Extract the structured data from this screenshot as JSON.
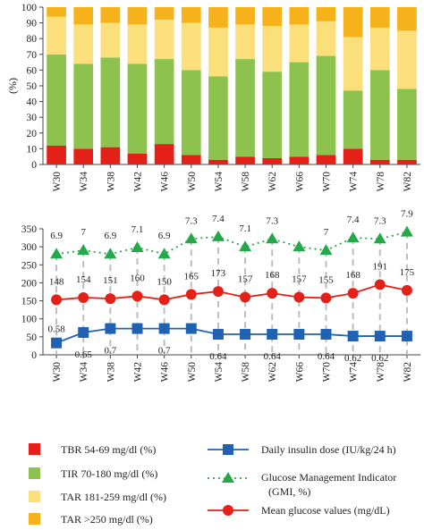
{
  "chart_data": [
    {
      "type": "bar",
      "stacked": true,
      "ylabel": "(%)",
      "ylim": [
        0,
        100
      ],
      "yticks": [
        0,
        10,
        20,
        30,
        40,
        50,
        60,
        70,
        80,
        90,
        100
      ],
      "categories": [
        "W30",
        "W34",
        "W38",
        "W42",
        "W46",
        "W50",
        "W54",
        "W58",
        "W62",
        "W66",
        "W70",
        "W74",
        "W78",
        "W82"
      ],
      "series": [
        {
          "name": "TBR 54-69 mg/dl (%)",
          "color": "#e32119",
          "values": [
            12,
            10,
            11,
            7,
            13,
            6,
            3,
            5,
            4,
            5,
            6,
            10,
            3,
            3
          ]
        },
        {
          "name": "TIR 70-180 mg/dl (%)",
          "color": "#8cc24d",
          "values": [
            58,
            54,
            57,
            57,
            54,
            54,
            53,
            62,
            55,
            60,
            63,
            37,
            57,
            45
          ]
        },
        {
          "name": "TAR 181-259 mg/dl (%)",
          "color": "#fbdf7a",
          "values": [
            24,
            25,
            22,
            25,
            25,
            30,
            31,
            22,
            29,
            24,
            22,
            34,
            27,
            37
          ]
        },
        {
          "name": "TAR >250 mg/dl (%)",
          "color": "#f6b21a",
          "values": [
            6,
            11,
            10,
            11,
            8,
            10,
            13,
            11,
            12,
            11,
            9,
            19,
            13,
            15
          ]
        }
      ]
    },
    {
      "type": "line",
      "ylim": [
        0,
        350
      ],
      "yticks": [
        0,
        50,
        100,
        150,
        200,
        250,
        300,
        350
      ],
      "categories": [
        "W30",
        "W34",
        "W38",
        "W42",
        "W46",
        "W50",
        "W54",
        "W58",
        "W62",
        "W66",
        "W70",
        "W74",
        "W78",
        "W82"
      ],
      "series": [
        {
          "name": "Daily insulin dose (IU/kg/24 h)",
          "color": "#1f62b3",
          "marker": "square",
          "plot_values": [
            33,
            62,
            73,
            73,
            73,
            73,
            57,
            57,
            57,
            57,
            57,
            52,
            52,
            52
          ],
          "labels": [
            "0.58",
            "0.65",
            "0.7",
            "",
            "0.7",
            "",
            "0.64",
            "",
            "0.64",
            "",
            "0.64",
            "0.62",
            "0.62",
            ""
          ]
        },
        {
          "name": "Glucose Management Indicator (GMI, %)",
          "color": "#25a84a",
          "marker": "triangle",
          "dotted": true,
          "plot_values": [
            280,
            290,
            280,
            298,
            280,
            322,
            328,
            300,
            322,
            300,
            290,
            325,
            322,
            341
          ],
          "labels": [
            "6.9",
            "7",
            "6.9",
            "7.1",
            "6.9",
            "7.3",
            "7.4",
            "7.1",
            "7.3",
            "",
            "7",
            "7.4",
            "7.3",
            "7.9"
          ]
        },
        {
          "name": "Mean glucose values (mg/dL)",
          "color": "#e32119",
          "marker": "circle",
          "plot_values": [
            153,
            159,
            156,
            163,
            153,
            168,
            176,
            160,
            171,
            160,
            158,
            171,
            195,
            179
          ],
          "labels": [
            "148",
            "154",
            "151",
            "160",
            "150",
            "165",
            "173",
            "157",
            "168",
            "157",
            "155",
            "168",
            "191",
            "175"
          ]
        }
      ]
    }
  ]
}
